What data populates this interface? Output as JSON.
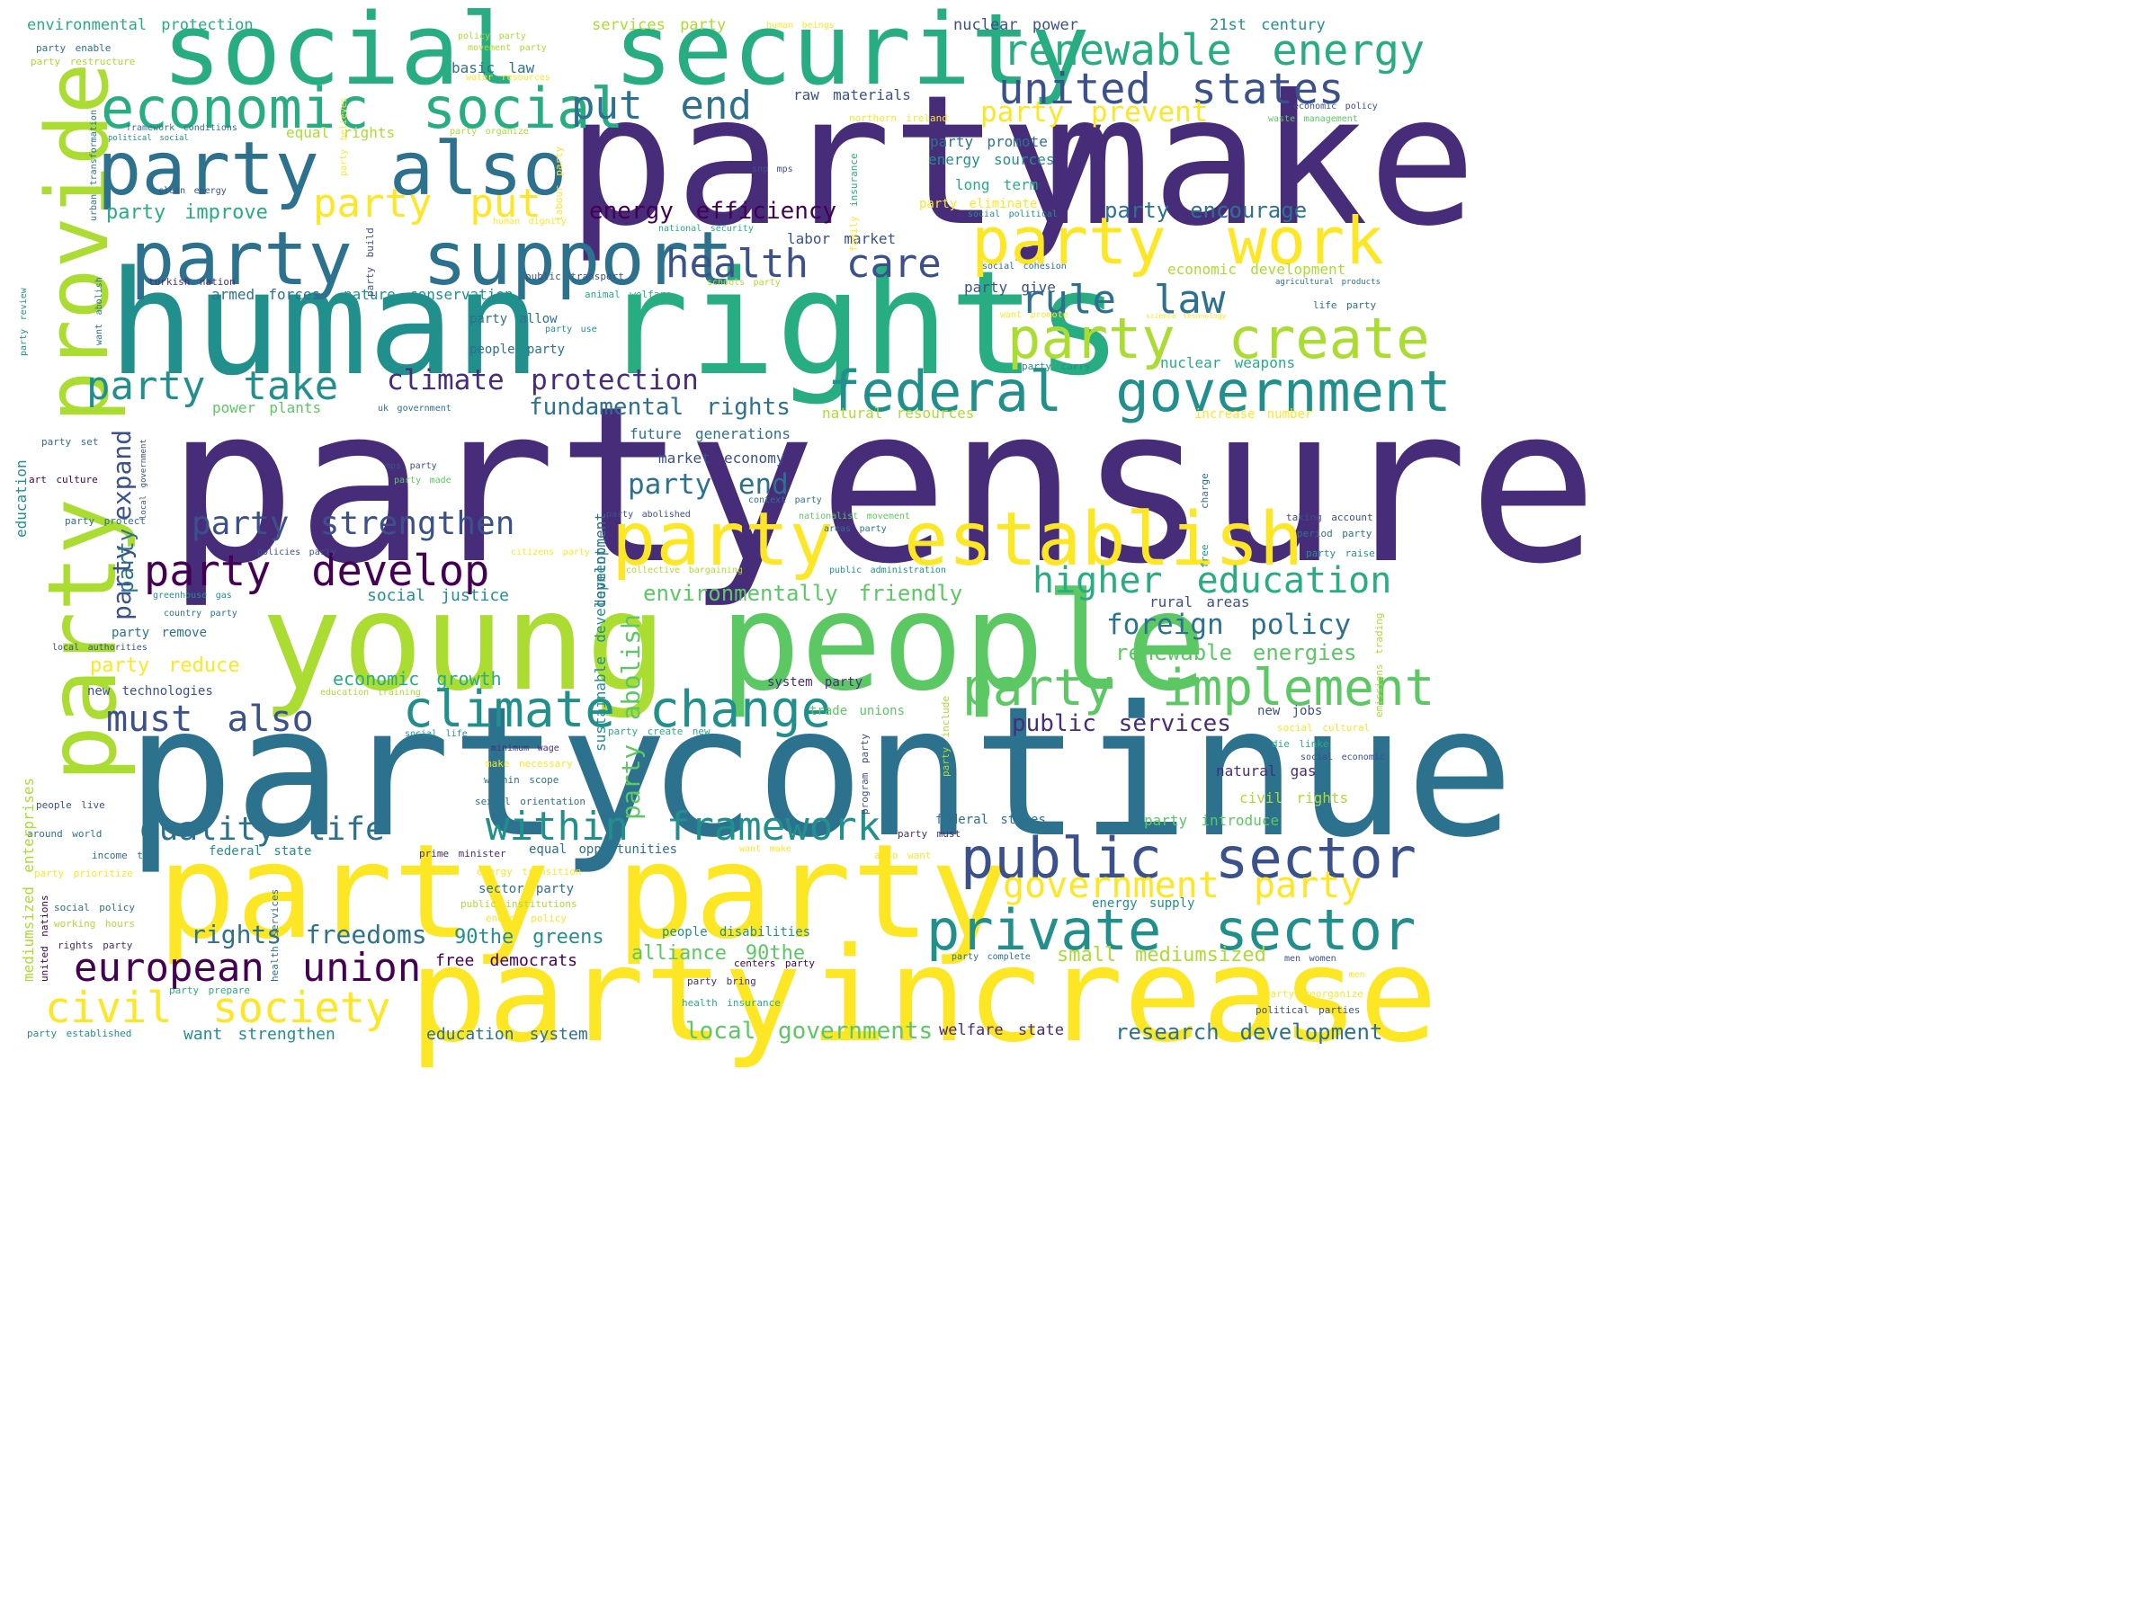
{
  "cloud": {
    "background": "#ffffff",
    "palette": {
      "p1": "#440154",
      "p2": "#472c7a",
      "p3": "#3b518b",
      "p4": "#2c718e",
      "p5": "#21908d",
      "p6": "#27ad81",
      "p7": "#5cc863",
      "p8": "#aadc32",
      "p9": "#fde725"
    },
    "words": [
      {
        "text": "party",
        "color": "p2"
      },
      {
        "text": "ensure",
        "color": "p2"
      },
      {
        "text": "party",
        "color": "p2"
      },
      {
        "text": "make",
        "color": "p2"
      },
      {
        "text": "party",
        "color": "p4"
      },
      {
        "text": "continue",
        "color": "p4"
      },
      {
        "text": "human",
        "color": "p5"
      },
      {
        "text": "rights",
        "color": "p6"
      },
      {
        "text": "social security",
        "color": "p6"
      },
      {
        "text": "young",
        "color": "p8"
      },
      {
        "text": "people",
        "color": "p7"
      },
      {
        "text": "party",
        "color": "p9"
      },
      {
        "text": "party",
        "color": "p9"
      },
      {
        "text": "party",
        "color": "p9"
      },
      {
        "text": "increase",
        "color": "p9"
      },
      {
        "text": "party",
        "color": "p8"
      },
      {
        "text": "provide",
        "color": "p8"
      },
      {
        "text": "party also",
        "color": "p4"
      },
      {
        "text": "party support",
        "color": "p4"
      },
      {
        "text": "economic social",
        "color": "p6"
      },
      {
        "text": "party establish",
        "color": "p9"
      },
      {
        "text": "party work",
        "color": "p9"
      },
      {
        "text": "party create",
        "color": "p8"
      },
      {
        "text": "federal government",
        "color": "p5"
      },
      {
        "text": "renewable energy",
        "color": "p6"
      },
      {
        "text": "united states",
        "color": "p3"
      },
      {
        "text": "public sector",
        "color": "p3"
      },
      {
        "text": "private sector",
        "color": "p5"
      },
      {
        "text": "party implement",
        "color": "p7"
      },
      {
        "text": "climate",
        "color": "p5"
      },
      {
        "text": "change",
        "color": "p5"
      },
      {
        "text": "party develop",
        "color": "p1"
      },
      {
        "text": "civil society",
        "color": "p9"
      },
      {
        "text": "european union",
        "color": "p1"
      },
      {
        "text": "within framework",
        "color": "p5"
      },
      {
        "text": "health care",
        "color": "p3"
      },
      {
        "text": "rule law",
        "color": "p4"
      },
      {
        "text": "put end",
        "color": "p4"
      },
      {
        "text": "party take",
        "color": "p5"
      },
      {
        "text": "party put",
        "color": "p9"
      },
      {
        "text": "party strengthen",
        "color": "p3"
      },
      {
        "text": "must also",
        "color": "p3"
      },
      {
        "text": "quality life",
        "color": "p4"
      },
      {
        "text": "government party",
        "color": "p9"
      },
      {
        "text": "higher education",
        "color": "p6"
      },
      {
        "text": "party prevent",
        "color": "p9"
      },
      {
        "text": "climate protection",
        "color": "p2"
      },
      {
        "text": "party end",
        "color": "p4"
      },
      {
        "text": "foreign policy",
        "color": "p4"
      },
      {
        "text": "energy efficiency",
        "color": "p1"
      },
      {
        "text": "fundamental rights",
        "color": "p4"
      },
      {
        "text": "environmentally friendly",
        "color": "p7"
      },
      {
        "text": "public services",
        "color": "p2"
      },
      {
        "text": "party encourage",
        "color": "p4"
      },
      {
        "text": "rights freedoms",
        "color": "p4"
      },
      {
        "text": "local governments",
        "color": "p7"
      },
      {
        "text": "research development",
        "color": "p4"
      },
      {
        "text": "small mediumsized",
        "color": "p8"
      },
      {
        "text": "renewable energies",
        "color": "p7"
      },
      {
        "text": "party improve",
        "color": "p6"
      },
      {
        "text": "party reduce",
        "color": "p9"
      },
      {
        "text": "party abolish",
        "color": "p7"
      },
      {
        "text": "party expand",
        "color": "p3"
      },
      {
        "text": "social justice",
        "color": "p5"
      },
      {
        "text": "economic growth",
        "color": "p6"
      },
      {
        "text": "90the greens",
        "color": "p5"
      },
      {
        "text": "alliance 90the",
        "color": "p7"
      },
      {
        "text": "free democrats",
        "color": "p1"
      },
      {
        "text": "want strengthen",
        "color": "p5"
      },
      {
        "text": "education system",
        "color": "p4"
      },
      {
        "text": "welfare state",
        "color": "p2"
      },
      {
        "text": "party create new",
        "color": "p6"
      },
      {
        "text": "nuclear power",
        "color": "p3"
      },
      {
        "text": "21st century",
        "color": "p5"
      },
      {
        "text": "environmental protection",
        "color": "p6"
      },
      {
        "text": "services party",
        "color": "p8"
      },
      {
        "text": "basic law",
        "color": "p4"
      },
      {
        "text": "raw materials",
        "color": "p3"
      },
      {
        "text": "equal rights",
        "color": "p8"
      },
      {
        "text": "party promote",
        "color": "p4"
      },
      {
        "text": "energy sources",
        "color": "p5"
      },
      {
        "text": "long term",
        "color": "p6"
      },
      {
        "text": "party eliminate",
        "color": "p9"
      },
      {
        "text": "labor market",
        "color": "p3"
      },
      {
        "text": "party give",
        "color": "p3"
      },
      {
        "text": "economic development",
        "color": "p8"
      },
      {
        "text": "armed forces",
        "color": "p4"
      },
      {
        "text": "nature conservation",
        "color": "p5"
      },
      {
        "text": "party allow",
        "color": "p4"
      },
      {
        "text": "people party",
        "color": "p4"
      },
      {
        "text": "nuclear weapons",
        "color": "p6"
      },
      {
        "text": "power plants",
        "color": "p7"
      },
      {
        "text": "natural resources",
        "color": "p8"
      },
      {
        "text": "increase number",
        "color": "p9"
      },
      {
        "text": "future generations",
        "color": "p4"
      },
      {
        "text": "market economy",
        "color": "p3"
      },
      {
        "text": "party remove",
        "color": "p4"
      },
      {
        "text": "new technologies",
        "color": "p3"
      },
      {
        "text": "system party",
        "color": "p2"
      },
      {
        "text": "trade unions",
        "color": "p7"
      },
      {
        "text": "new jobs",
        "color": "p3"
      },
      {
        "text": "natural gas",
        "color": "p2"
      },
      {
        "text": "civil rights",
        "color": "p8"
      },
      {
        "text": "party introduce",
        "color": "p7"
      },
      {
        "text": "federal states",
        "color": "p4"
      },
      {
        "text": "federal state",
        "color": "p5"
      },
      {
        "text": "equal opportunities",
        "color": "p4"
      },
      {
        "text": "sector party",
        "color": "p4"
      },
      {
        "text": "energy supply",
        "color": "p5"
      },
      {
        "text": "people disabilities",
        "color": "p5"
      },
      {
        "text": "rural areas",
        "color": "p3"
      },
      {
        "text": "party set",
        "color": "p4"
      },
      {
        "text": "party protect",
        "color": "p4"
      },
      {
        "text": "art culture",
        "color": "p1"
      },
      {
        "text": "party enable",
        "color": "p4"
      },
      {
        "text": "party restructure",
        "color": "p8"
      },
      {
        "text": "policy party",
        "color": "p8"
      },
      {
        "text": "movement party",
        "color": "p8"
      },
      {
        "text": "water resources",
        "color": "p9"
      },
      {
        "text": "human beings",
        "color": "p9"
      },
      {
        "text": "northern ireland",
        "color": "p9"
      },
      {
        "text": "party organize",
        "color": "p8"
      },
      {
        "text": "framework conditions",
        "color": "p4"
      },
      {
        "text": "political social",
        "color": "p5"
      },
      {
        "text": "clean energy",
        "color": "p3"
      },
      {
        "text": "human dignity",
        "color": "p9"
      },
      {
        "text": "national security",
        "color": "p6"
      },
      {
        "text": "public transport",
        "color": "p3"
      },
      {
        "text": "turkish nation",
        "color": "p2"
      },
      {
        "text": "animal welfare",
        "color": "p6"
      },
      {
        "text": "schools party",
        "color": "p8"
      },
      {
        "text": "snp mps",
        "color": "p3"
      },
      {
        "text": "social political",
        "color": "p5"
      },
      {
        "text": "social cohesion",
        "color": "p4"
      },
      {
        "text": "agricultural products",
        "color": "p4"
      },
      {
        "text": "want promote",
        "color": "p9"
      },
      {
        "text": "science technology",
        "color": "p9"
      },
      {
        "text": "life party",
        "color": "p4"
      },
      {
        "text": "party carry",
        "color": "p5"
      },
      {
        "text": "economic policy",
        "color": "p3"
      },
      {
        "text": "waste management",
        "color": "p7"
      },
      {
        "text": "uk government",
        "color": "p4"
      },
      {
        "text": "mps party",
        "color": "p3"
      },
      {
        "text": "party made",
        "color": "p7"
      },
      {
        "text": "context party",
        "color": "p4"
      },
      {
        "text": "party abolished",
        "color": "p3"
      },
      {
        "text": "nationalist movement",
        "color": "p7"
      },
      {
        "text": "areas party",
        "color": "p4"
      },
      {
        "text": "taking account",
        "color": "p3"
      },
      {
        "text": "period party",
        "color": "p4"
      },
      {
        "text": "party raise",
        "color": "p5"
      },
      {
        "text": "policies party",
        "color": "p3"
      },
      {
        "text": "citizens party",
        "color": "p9"
      },
      {
        "text": "collective bargaining",
        "color": "p8"
      },
      {
        "text": "public administration",
        "color": "p5"
      },
      {
        "text": "greenhouse gas",
        "color": "p5"
      },
      {
        "text": "country party",
        "color": "p4"
      },
      {
        "text": "local authorities",
        "color": "p3"
      },
      {
        "text": "education training",
        "color": "p8"
      },
      {
        "text": "social life",
        "color": "p5"
      },
      {
        "text": "minimum wage",
        "color": "p2"
      },
      {
        "text": "make necessary",
        "color": "p9"
      },
      {
        "text": "within scope",
        "color": "p4"
      },
      {
        "text": "sexual orientation",
        "color": "p4"
      },
      {
        "text": "people live",
        "color": "p3"
      },
      {
        "text": "around world",
        "color": "p4"
      },
      {
        "text": "income tax",
        "color": "p4"
      },
      {
        "text": "prime minister",
        "color": "p2"
      },
      {
        "text": "want make",
        "color": "p9"
      },
      {
        "text": "also want",
        "color": "p9"
      },
      {
        "text": "party must",
        "color": "p2"
      },
      {
        "text": "party prioritize",
        "color": "p9"
      },
      {
        "text": "social policy",
        "color": "p4"
      },
      {
        "text": "working hours",
        "color": "p8"
      },
      {
        "text": "rights party",
        "color": "p2"
      },
      {
        "text": "public institutions",
        "color": "p8"
      },
      {
        "text": "energy transition",
        "color": "p9"
      },
      {
        "text": "energy policy",
        "color": "p9"
      },
      {
        "text": "party prepare",
        "color": "p6"
      },
      {
        "text": "party bring",
        "color": "p2"
      },
      {
        "text": "health insurance",
        "color": "p6"
      },
      {
        "text": "centers party",
        "color": "p1"
      },
      {
        "text": "party complete",
        "color": "p4"
      },
      {
        "text": "men women",
        "color": "p3"
      },
      {
        "text": "women men",
        "color": "p9"
      },
      {
        "text": "party reorganize",
        "color": "p9"
      },
      {
        "text": "political parties",
        "color": "p3"
      },
      {
        "text": "party established",
        "color": "p5"
      },
      {
        "text": "social cultural",
        "color": "p9"
      },
      {
        "text": "social economic",
        "color": "p3"
      },
      {
        "text": "die linke",
        "color": "p6"
      },
      {
        "text": "party use",
        "color": "p5"
      },
      {
        "text": "urban transformation",
        "color": "p4"
      },
      {
        "text": "want abolish",
        "color": "p4"
      },
      {
        "text": "party review",
        "color": "p5"
      },
      {
        "text": "education",
        "color": "p5"
      },
      {
        "text": "party believes",
        "color": "p9"
      },
      {
        "text": "labour party",
        "color": "p9"
      },
      {
        "text": "party build",
        "color": "p3"
      },
      {
        "text": "insurance",
        "color": "p6"
      },
      {
        "text": "family",
        "color": "p9"
      },
      {
        "text": "local government",
        "color": "p3"
      },
      {
        "text": "sustainable development",
        "color": "p5"
      },
      {
        "text": "development",
        "color": "p4"
      },
      {
        "text": "charge",
        "color": "p4"
      },
      {
        "text": "free",
        "color": "p5"
      },
      {
        "text": "emissions trading",
        "color": "p8"
      },
      {
        "text": "mediumsized enterprises",
        "color": "p8"
      },
      {
        "text": "united nations",
        "color": "p1"
      },
      {
        "text": "health services",
        "color": "p4"
      },
      {
        "text": "party include",
        "color": "p8"
      },
      {
        "text": "program party",
        "color": "p3"
      },
      {
        "text": "party",
        "color": "p4"
      }
    ]
  }
}
